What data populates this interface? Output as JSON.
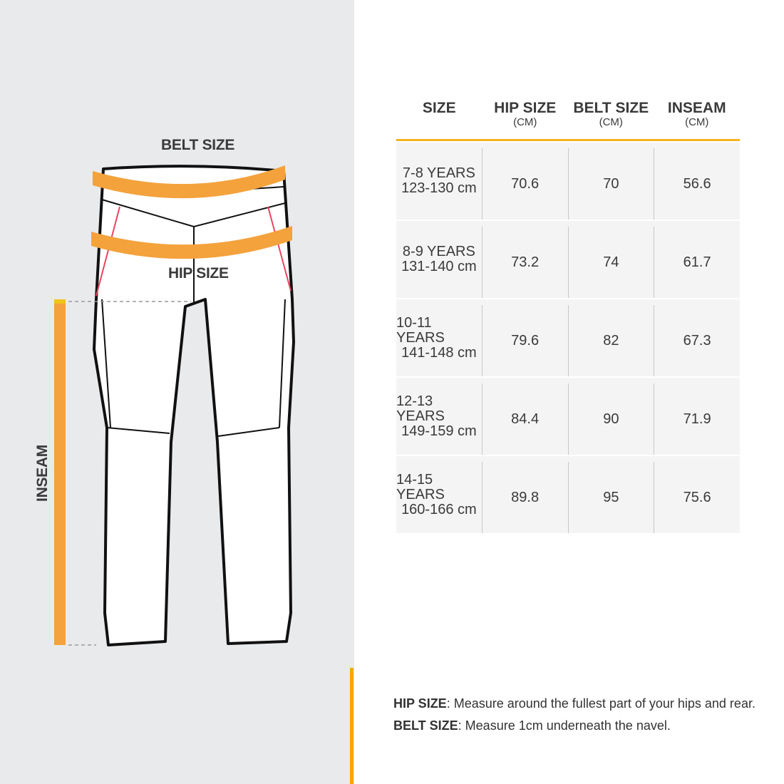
{
  "diagram": {
    "belt_label": "BELT SIZE",
    "hip_label": "HIP SIZE",
    "inseam_label": "INSEAM",
    "accent_color": "#f5a800",
    "tape_color": "#f3a23c"
  },
  "table": {
    "headers": [
      {
        "title": "SIZE",
        "unit": ""
      },
      {
        "title": "HIP SIZE",
        "unit": "(CM)"
      },
      {
        "title": "BELT SIZE",
        "unit": "(CM)"
      },
      {
        "title": "INSEAM",
        "unit": "(CM)"
      }
    ],
    "rows": [
      {
        "age": "7-8 YEARS",
        "height": "123-130 cm",
        "hip": "70.6",
        "belt": "70",
        "inseam": "56.6"
      },
      {
        "age": "8-9 YEARS",
        "height": "131-140 cm",
        "hip": "73.2",
        "belt": "74",
        "inseam": "61.7"
      },
      {
        "age": "10-11 YEARS",
        "height": "141-148 cm",
        "hip": "79.6",
        "belt": "82",
        "inseam": "67.3"
      },
      {
        "age": "12-13 YEARS",
        "height": "149-159 cm",
        "hip": "84.4",
        "belt": "90",
        "inseam": "71.9"
      },
      {
        "age": "14-15 YEARS",
        "height": "160-166 cm",
        "hip": "89.8",
        "belt": "95",
        "inseam": "75.6"
      }
    ]
  },
  "notes": [
    {
      "term": "HIP SIZE",
      "text": ": Measure around the fullest part of your hips and rear."
    },
    {
      "term": "BELT SIZE",
      "text": ": Measure 1cm underneath the navel."
    }
  ]
}
